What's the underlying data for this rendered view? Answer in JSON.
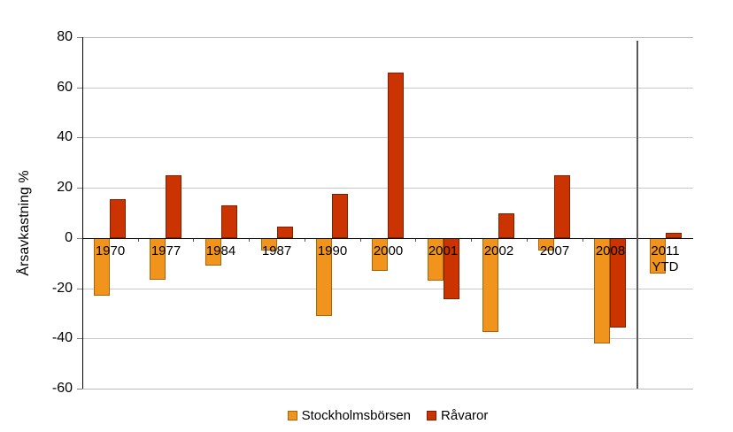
{
  "chart_data": {
    "type": "bar",
    "title": "",
    "ylabel": "Årsavkastning %",
    "ylim": [
      -60,
      80
    ],
    "yticks": [
      80,
      60,
      40,
      20,
      0,
      -20,
      -40,
      -60
    ],
    "categories": [
      "1970",
      "1977",
      "1984",
      "1987",
      "1990",
      "2000",
      "2001",
      "2002",
      "2007",
      "2008",
      "2011\nYTD"
    ],
    "series": [
      {
        "name": "Stockholmsbörsen",
        "color": "#F0941E",
        "border_color": "#A66508",
        "values": [
          -23,
          -16.5,
          -11,
          -5,
          -31,
          -13,
          -17,
          -37.5,
          -5,
          -42,
          -14
        ]
      },
      {
        "name": "Råvaror",
        "color": "#CB3301",
        "border_color": "#7E2000",
        "values": [
          15.5,
          25,
          13,
          4.5,
          17.5,
          66,
          -24.5,
          10,
          25,
          -35.5,
          2
        ]
      }
    ],
    "legend_position": "bottom",
    "grid": true,
    "separator_after_category": "2008",
    "axis_color": "#000000",
    "gridline_color": "#C9C9C9",
    "separator_color": "#595959"
  }
}
